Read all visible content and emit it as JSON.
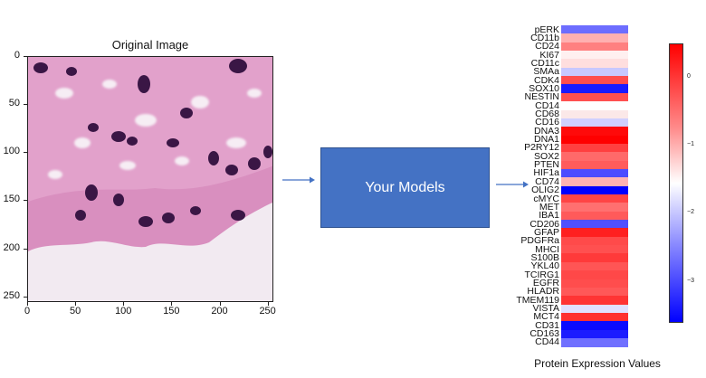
{
  "image_panel": {
    "title": "Original Image",
    "y_ticks": [
      "0",
      "50",
      "100",
      "150",
      "200",
      "250"
    ],
    "x_ticks": [
      "0",
      "50",
      "100",
      "150",
      "200",
      "250"
    ]
  },
  "model_box": {
    "label": "Your Models"
  },
  "heatmap": {
    "proteins": [
      "pERK",
      "CD11b",
      "CD24",
      "KI67",
      "CD11c",
      "SMAa",
      "CDK4",
      "SOX10",
      "NESTIN",
      "CD14",
      "CD68",
      "CD16",
      "DNA3",
      "DNA1",
      "P2RY12",
      "SOX2",
      "PTEN",
      "HIF1a",
      "CD74",
      "OLIG2",
      "cMYC",
      "MET",
      "IBA1",
      "CD206",
      "GFAP",
      "PDGFRa",
      "MHCI",
      "S100B",
      "YKL40",
      "TCIRG1",
      "EGFR",
      "HLADR",
      "TMEM119",
      "VISTA",
      "MCT4",
      "CD31",
      "CD163",
      "CD44"
    ],
    "colors": [
      "#6d6dff",
      "#ffb0b0",
      "#ff8080",
      "#fff0f0",
      "#ffdede",
      "#c8c8ff",
      "#ff4d4d",
      "#1a1aff",
      "#ff5050",
      "#ffffff",
      "#fbe8e8",
      "#d0d0ff",
      "#ff0a0a",
      "#ff0000",
      "#ff4040",
      "#ff6a6a",
      "#ff5c5c",
      "#4c4cff",
      "#ffb2b2",
      "#0000ff",
      "#ff4545",
      "#ff7070",
      "#ff5a5a",
      "#5050ff",
      "#ff2020",
      "#ff4a4a",
      "#ff5050",
      "#ff3a3a",
      "#ff5555",
      "#ff4848",
      "#ff4d4d",
      "#ff5858",
      "#ff3434",
      "#e0e0ff",
      "#ff3030",
      "#0a0aff",
      "#1c1cff",
      "#7070ff"
    ]
  },
  "colorbar": {
    "ticks": [
      "0",
      "−1",
      "−2",
      "−3"
    ]
  },
  "caption": "Protein Expression Values",
  "colors": {
    "model_box": "#4472c4",
    "arrow": "#4472c4"
  }
}
